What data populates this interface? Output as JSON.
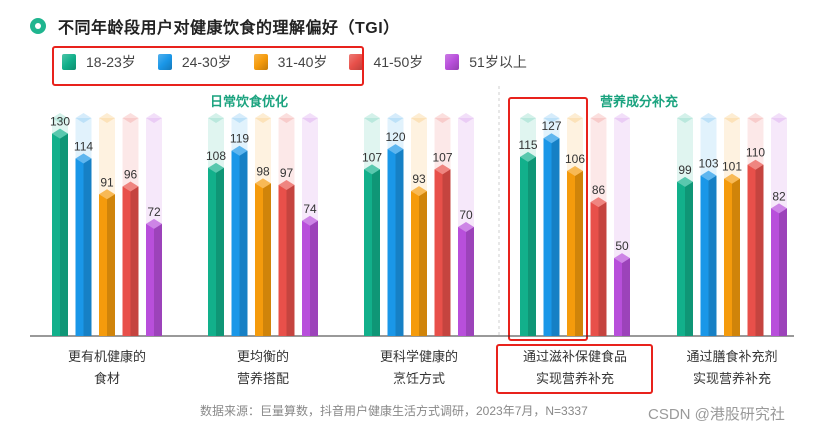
{
  "title": "不同年龄段用户对健康饮食的理解偏好（TGI）",
  "title_icon": "target-icon",
  "footnote": "数据来源：巨量算数，抖音用户健康生活方式调研，2023年7月，N=3337",
  "watermark": "CSDN @港股研究社",
  "colors": {
    "accent": "#1ba37f",
    "highlight_red": "#e8221c",
    "series": [
      "#12b08b",
      "#1a97e8",
      "#f59b0c",
      "#e8504a",
      "#b84fdb"
    ]
  },
  "chart_data": {
    "type": "bar",
    "title": "不同年龄段用户对健康饮食的理解偏好（TGI）",
    "groups": [
      {
        "label": "日常饮食优化",
        "category_indices": [
          0,
          1,
          2
        ]
      },
      {
        "label": "营养成分补充",
        "category_indices": [
          3,
          4
        ]
      }
    ],
    "categories": [
      [
        "更有机健康的",
        "食材"
      ],
      [
        "更均衡的",
        "营养搭配"
      ],
      [
        "更科学健康的",
        "烹饪方式"
      ],
      [
        "通过滋补保健食品",
        "实现营养补充"
      ],
      [
        "通过膳食补充剂",
        "实现营养补充"
      ]
    ],
    "series": [
      {
        "name": "18-23岁",
        "values": [
          130,
          108,
          107,
          115,
          99
        ]
      },
      {
        "name": "24-30岁",
        "values": [
          114,
          119,
          120,
          127,
          103
        ]
      },
      {
        "name": "31-40岁",
        "values": [
          91,
          98,
          93,
          106,
          101
        ]
      },
      {
        "name": "41-50岁",
        "values": [
          96,
          97,
          107,
          86,
          110
        ]
      },
      {
        "name": "51岁以上",
        "values": [
          72,
          74,
          70,
          50,
          82
        ]
      }
    ],
    "ylim": [
      0,
      140
    ],
    "grid": false,
    "legend_position": "top-left",
    "highlighted_category": 3
  }
}
